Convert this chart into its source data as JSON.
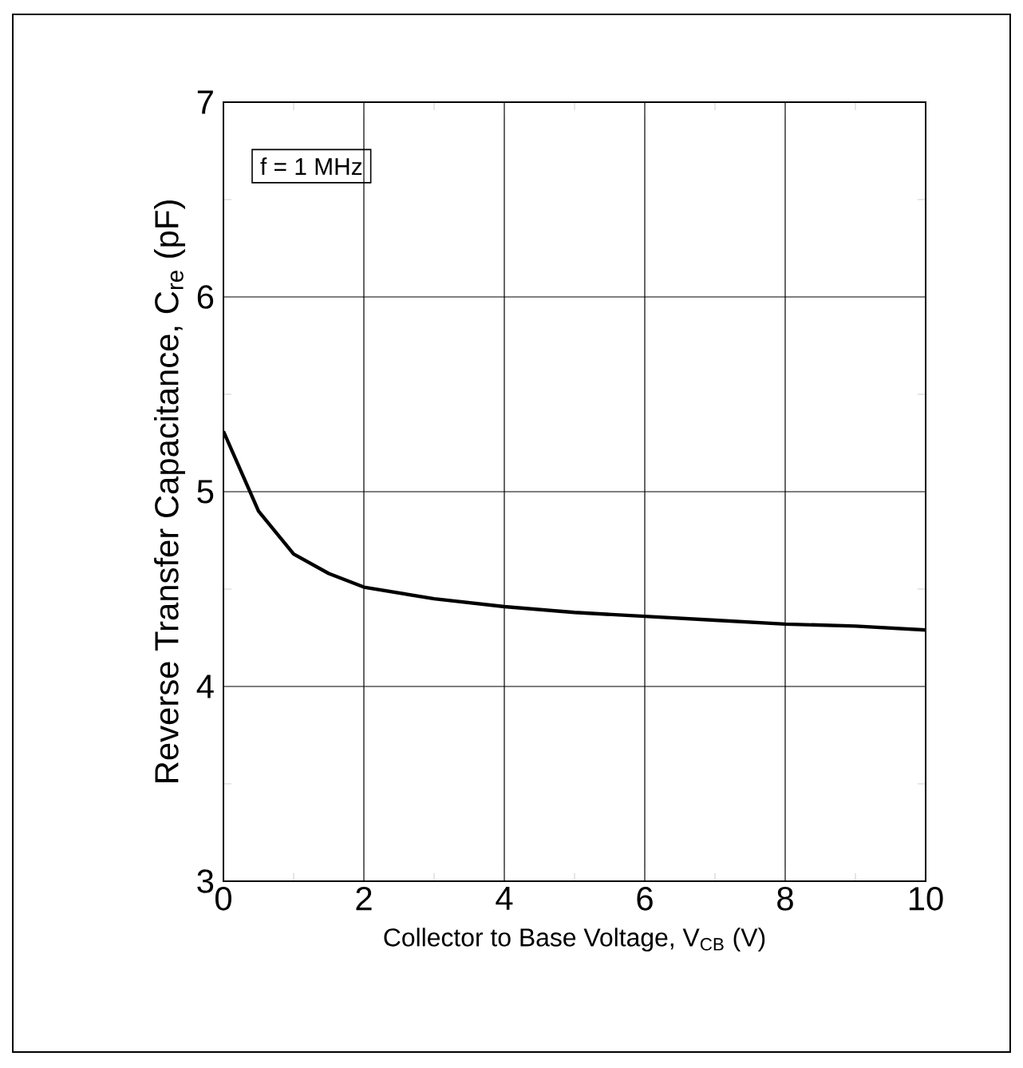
{
  "chart_data": {
    "type": "line",
    "xlabel": "Collector to Base Voltage, V$_{CB}$ (V)",
    "ylabel": "Reverse Transfer Capacitance, C$_{re}$ (pF)",
    "annotations": [
      "f = 1 MHz"
    ],
    "x": [
      0,
      0.5,
      1,
      1.5,
      2,
      3,
      4,
      5,
      6,
      7,
      8,
      9,
      10
    ],
    "series": [
      {
        "color": "#000000",
        "values": [
          5.31,
          4.9,
          4.68,
          4.58,
          4.51,
          4.45,
          4.41,
          4.38,
          4.36,
          4.34,
          4.32,
          4.31,
          4.29
        ]
      }
    ],
    "xlim": [
      0,
      10
    ],
    "ylim": [
      3,
      7
    ],
    "xticks": [
      0,
      2,
      4,
      6,
      8,
      10
    ],
    "yticks": [
      3,
      4,
      5,
      6,
      7
    ],
    "grid": true,
    "marker": "none",
    "line_style": "solid"
  }
}
